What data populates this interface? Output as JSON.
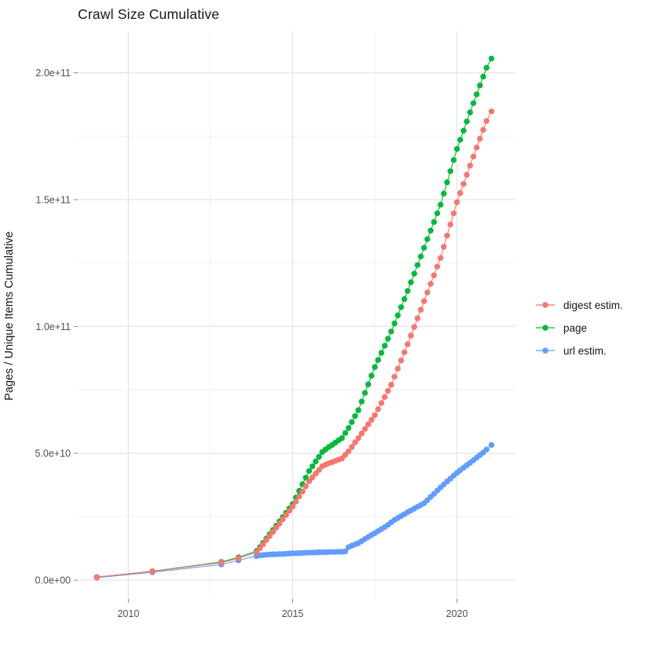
{
  "chart_data": {
    "type": "scatter",
    "title": "Crawl Size Cumulative",
    "ylabel": "Pages / Unique Items Cumulative",
    "xlabel": "",
    "grid": true,
    "legend_position": "right",
    "value_unit": "y values stored in billions (1e9) of pages/items",
    "x_axis": {
      "range": [
        2008.46,
        2021.78
      ],
      "major_ticks": [
        {
          "value": 2010,
          "label": "2010"
        },
        {
          "value": 2015,
          "label": "2015"
        },
        {
          "value": 2020,
          "label": "2020"
        }
      ],
      "minor_ticks": [
        2012.5,
        2017.5
      ]
    },
    "y_axis": {
      "range": [
        -7.4,
        216.3
      ],
      "major_ticks": [
        {
          "value": 0,
          "label": "0.0e+00"
        },
        {
          "value": 50,
          "label": "5.0e+10"
        },
        {
          "value": 100,
          "label": "1.0e+11"
        },
        {
          "value": 150,
          "label": "1.5e+11"
        },
        {
          "value": 200,
          "label": "2.0e+11"
        }
      ],
      "minor_ticks": [
        25,
        75,
        125,
        175
      ]
    },
    "series": [
      {
        "name": "digest estim.",
        "color": "#F8766D",
        "points": [
          [
            2009.04,
            1.2
          ],
          [
            2010.73,
            3.4
          ],
          [
            2012.83,
            6.9
          ],
          [
            2013.35,
            8.6
          ],
          [
            2013.9,
            11.0
          ],
          [
            2014.0,
            12.5
          ],
          [
            2014.1,
            14.1
          ],
          [
            2014.2,
            15.8
          ],
          [
            2014.3,
            17.4
          ],
          [
            2014.4,
            19.0
          ],
          [
            2014.5,
            20.7
          ],
          [
            2014.6,
            22.3
          ],
          [
            2014.7,
            24.0
          ],
          [
            2014.8,
            25.7
          ],
          [
            2014.9,
            27.4
          ],
          [
            2015.0,
            29.0
          ],
          [
            2015.1,
            31.0
          ],
          [
            2015.2,
            33.0
          ],
          [
            2015.3,
            35.0
          ],
          [
            2015.4,
            37.0
          ],
          [
            2015.5,
            39.0
          ],
          [
            2015.6,
            40.5
          ],
          [
            2015.7,
            42.0
          ],
          [
            2015.8,
            43.4
          ],
          [
            2015.9,
            44.9
          ],
          [
            2016.0,
            45.5
          ],
          [
            2016.1,
            46.1
          ],
          [
            2016.2,
            46.5
          ],
          [
            2016.3,
            47.0
          ],
          [
            2016.4,
            47.5
          ],
          [
            2016.5,
            48.0
          ],
          [
            2016.6,
            49.4
          ],
          [
            2016.7,
            50.8
          ],
          [
            2016.8,
            52.5
          ],
          [
            2016.9,
            54.3
          ],
          [
            2017.0,
            56.0
          ],
          [
            2017.1,
            57.8
          ],
          [
            2017.2,
            59.6
          ],
          [
            2017.3,
            61.4
          ],
          [
            2017.4,
            63.2
          ],
          [
            2017.5,
            65.0
          ],
          [
            2017.6,
            67.4
          ],
          [
            2017.7,
            69.8
          ],
          [
            2017.8,
            72.2
          ],
          [
            2017.9,
            74.6
          ],
          [
            2018.0,
            77.0
          ],
          [
            2018.1,
            80.2
          ],
          [
            2018.2,
            83.4
          ],
          [
            2018.3,
            86.6
          ],
          [
            2018.4,
            89.8
          ],
          [
            2018.5,
            93.0
          ],
          [
            2018.6,
            96.4
          ],
          [
            2018.7,
            99.8
          ],
          [
            2018.8,
            103.2
          ],
          [
            2018.9,
            106.6
          ],
          [
            2019.0,
            110.0
          ],
          [
            2019.1,
            113.4
          ],
          [
            2019.2,
            116.8
          ],
          [
            2019.3,
            120.2
          ],
          [
            2019.4,
            123.6
          ],
          [
            2019.5,
            127.0
          ],
          [
            2019.6,
            131.4
          ],
          [
            2019.7,
            135.8
          ],
          [
            2019.8,
            140.2
          ],
          [
            2019.9,
            144.6
          ],
          [
            2020.0,
            149.0
          ],
          [
            2020.1,
            152.6
          ],
          [
            2020.2,
            156.2
          ],
          [
            2020.3,
            159.8
          ],
          [
            2020.4,
            163.4
          ],
          [
            2020.5,
            167.0
          ],
          [
            2020.6,
            170.5
          ],
          [
            2020.7,
            174.0
          ],
          [
            2020.8,
            177.5
          ],
          [
            2020.9,
            181.0
          ],
          [
            2021.05,
            184.8
          ]
        ]
      },
      {
        "name": "page",
        "color": "#00BA38",
        "points": [
          [
            2009.04,
            1.2
          ],
          [
            2010.73,
            3.5
          ],
          [
            2012.83,
            7.2
          ],
          [
            2013.35,
            9.0
          ],
          [
            2013.9,
            11.5
          ],
          [
            2014.0,
            13.0
          ],
          [
            2014.1,
            14.7
          ],
          [
            2014.2,
            16.4
          ],
          [
            2014.3,
            18.1
          ],
          [
            2014.4,
            19.8
          ],
          [
            2014.5,
            21.5
          ],
          [
            2014.6,
            23.2
          ],
          [
            2014.7,
            24.9
          ],
          [
            2014.8,
            26.6
          ],
          [
            2014.9,
            28.3
          ],
          [
            2015.0,
            30.0
          ],
          [
            2015.1,
            32.6
          ],
          [
            2015.2,
            35.2
          ],
          [
            2015.3,
            37.8
          ],
          [
            2015.4,
            40.4
          ],
          [
            2015.5,
            43.0
          ],
          [
            2015.6,
            44.9
          ],
          [
            2015.7,
            46.8
          ],
          [
            2015.8,
            48.6
          ],
          [
            2015.9,
            50.5
          ],
          [
            2016.0,
            51.5
          ],
          [
            2016.1,
            52.5
          ],
          [
            2016.2,
            53.3
          ],
          [
            2016.3,
            54.2
          ],
          [
            2016.4,
            55.1
          ],
          [
            2016.5,
            56.0
          ],
          [
            2016.6,
            58.0
          ],
          [
            2016.7,
            60.0
          ],
          [
            2016.8,
            62.3
          ],
          [
            2016.9,
            64.7
          ],
          [
            2017.0,
            67.0
          ],
          [
            2017.1,
            70.4
          ],
          [
            2017.2,
            73.8
          ],
          [
            2017.3,
            77.2
          ],
          [
            2017.4,
            80.6
          ],
          [
            2017.5,
            84.0
          ],
          [
            2017.6,
            86.8
          ],
          [
            2017.7,
            89.6
          ],
          [
            2017.8,
            92.4
          ],
          [
            2017.9,
            95.2
          ],
          [
            2018.0,
            98.0
          ],
          [
            2018.1,
            101.2
          ],
          [
            2018.2,
            104.4
          ],
          [
            2018.3,
            107.6
          ],
          [
            2018.4,
            110.8
          ],
          [
            2018.5,
            114.0
          ],
          [
            2018.6,
            117.4
          ],
          [
            2018.7,
            120.8
          ],
          [
            2018.8,
            124.2
          ],
          [
            2018.9,
            127.6
          ],
          [
            2019.0,
            131.0
          ],
          [
            2019.1,
            134.4
          ],
          [
            2019.2,
            137.8
          ],
          [
            2019.3,
            141.2
          ],
          [
            2019.4,
            144.6
          ],
          [
            2019.5,
            148.0
          ],
          [
            2019.6,
            152.4
          ],
          [
            2019.7,
            156.8
          ],
          [
            2019.8,
            161.2
          ],
          [
            2019.9,
            165.6
          ],
          [
            2020.0,
            170.0
          ],
          [
            2020.1,
            173.6
          ],
          [
            2020.2,
            177.2
          ],
          [
            2020.3,
            180.8
          ],
          [
            2020.4,
            184.4
          ],
          [
            2020.5,
            188.0
          ],
          [
            2020.6,
            191.5
          ],
          [
            2020.7,
            195.0
          ],
          [
            2020.8,
            198.5
          ],
          [
            2020.9,
            202.0
          ],
          [
            2021.05,
            205.6
          ]
        ]
      },
      {
        "name": "url estim.",
        "color": "#619CFF",
        "points": [
          [
            2009.04,
            1.0
          ],
          [
            2010.73,
            3.1
          ],
          [
            2012.83,
            6.2
          ],
          [
            2013.35,
            7.8
          ],
          [
            2013.9,
            9.5
          ],
          [
            2014.0,
            9.8
          ],
          [
            2014.1,
            9.9
          ],
          [
            2014.2,
            10.0
          ],
          [
            2014.3,
            10.1
          ],
          [
            2014.4,
            10.2
          ],
          [
            2014.5,
            10.2
          ],
          [
            2014.6,
            10.3
          ],
          [
            2014.7,
            10.3
          ],
          [
            2014.8,
            10.4
          ],
          [
            2014.9,
            10.5
          ],
          [
            2015.0,
            10.6
          ],
          [
            2015.1,
            10.6
          ],
          [
            2015.2,
            10.7
          ],
          [
            2015.3,
            10.7
          ],
          [
            2015.4,
            10.8
          ],
          [
            2015.5,
            10.8
          ],
          [
            2015.6,
            10.9
          ],
          [
            2015.7,
            10.9
          ],
          [
            2015.8,
            11.0
          ],
          [
            2015.9,
            11.0
          ],
          [
            2016.0,
            11.0
          ],
          [
            2016.1,
            11.1
          ],
          [
            2016.2,
            11.1
          ],
          [
            2016.3,
            11.1
          ],
          [
            2016.4,
            11.2
          ],
          [
            2016.5,
            11.2
          ],
          [
            2016.6,
            11.3
          ],
          [
            2016.7,
            13.0
          ],
          [
            2016.8,
            13.6
          ],
          [
            2016.9,
            14.1
          ],
          [
            2017.0,
            14.6
          ],
          [
            2017.1,
            15.4
          ],
          [
            2017.2,
            16.2
          ],
          [
            2017.3,
            17.0
          ],
          [
            2017.4,
            17.8
          ],
          [
            2017.5,
            18.5
          ],
          [
            2017.6,
            19.3
          ],
          [
            2017.7,
            20.1
          ],
          [
            2017.8,
            20.9
          ],
          [
            2017.9,
            21.8
          ],
          [
            2018.0,
            22.8
          ],
          [
            2018.1,
            23.7
          ],
          [
            2018.2,
            24.5
          ],
          [
            2018.3,
            25.3
          ],
          [
            2018.4,
            26.0
          ],
          [
            2018.5,
            26.8
          ],
          [
            2018.6,
            27.5
          ],
          [
            2018.7,
            28.2
          ],
          [
            2018.8,
            28.9
          ],
          [
            2018.9,
            29.6
          ],
          [
            2019.0,
            30.3
          ],
          [
            2019.1,
            31.5
          ],
          [
            2019.2,
            32.8
          ],
          [
            2019.3,
            34.0
          ],
          [
            2019.4,
            35.3
          ],
          [
            2019.5,
            36.5
          ],
          [
            2019.6,
            37.7
          ],
          [
            2019.7,
            38.9
          ],
          [
            2019.8,
            40.0
          ],
          [
            2019.9,
            41.2
          ],
          [
            2020.0,
            42.3
          ],
          [
            2020.1,
            43.3
          ],
          [
            2020.2,
            44.3
          ],
          [
            2020.3,
            45.3
          ],
          [
            2020.4,
            46.3
          ],
          [
            2020.5,
            47.3
          ],
          [
            2020.6,
            48.3
          ],
          [
            2020.7,
            49.3
          ],
          [
            2020.8,
            50.3
          ],
          [
            2020.9,
            51.5
          ],
          [
            2021.05,
            53.3
          ]
        ]
      }
    ]
  }
}
